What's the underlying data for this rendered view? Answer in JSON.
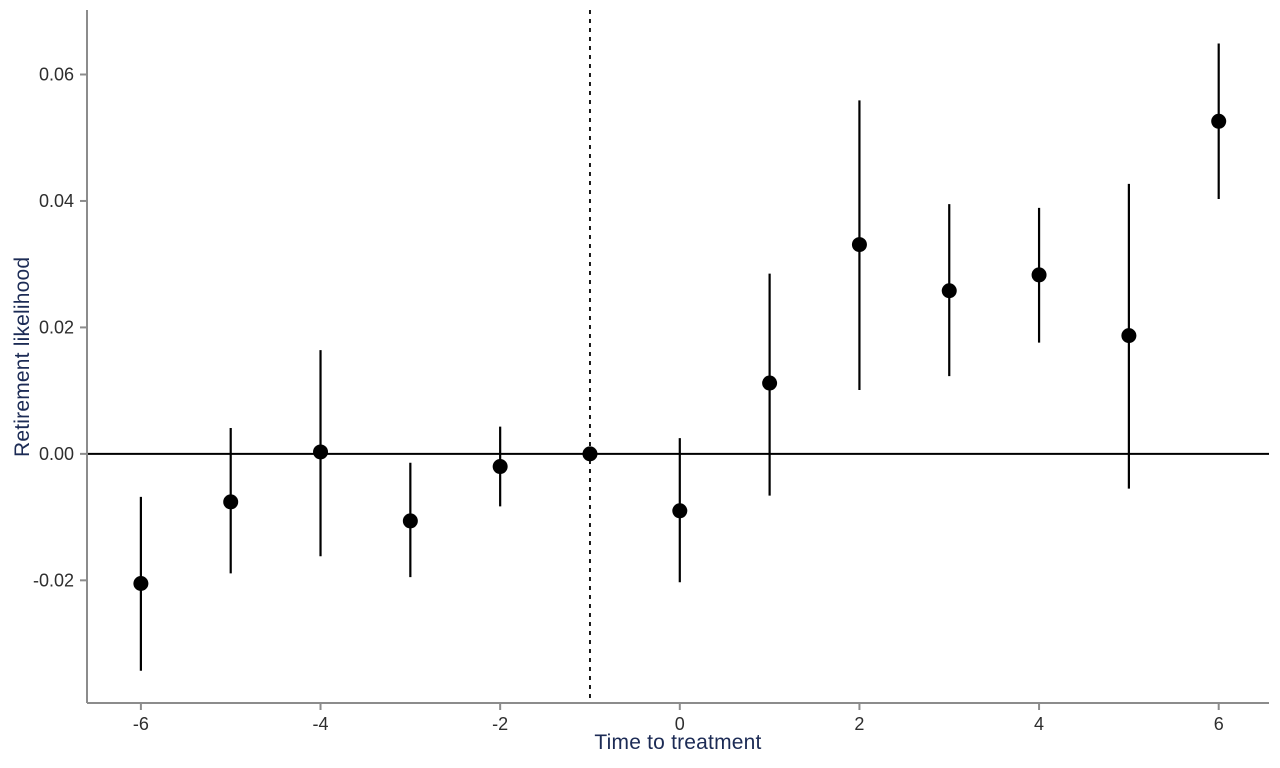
{
  "chart_data": {
    "type": "scatter",
    "subtype": "event-study-point-estimates-with-confidence-intervals",
    "title": "",
    "xlabel": "Time to treatment",
    "ylabel": "Retirement likelihood",
    "x": [
      -6,
      -5,
      -4,
      -3,
      -2,
      -1,
      0,
      1,
      2,
      3,
      4,
      5,
      6
    ],
    "estimates": [
      -0.0205,
      -0.0076,
      0.0003,
      -0.0106,
      -0.002,
      0.0,
      -0.009,
      0.0112,
      0.0331,
      0.0258,
      0.0283,
      0.0187,
      0.0526
    ],
    "ci_low": [
      -0.0343,
      -0.0189,
      -0.0162,
      -0.0195,
      -0.0083,
      0.0,
      -0.0203,
      -0.0066,
      0.0101,
      0.0123,
      0.0176,
      -0.0055,
      0.0403
    ],
    "ci_high": [
      -0.0068,
      0.0041,
      0.0164,
      -0.0014,
      0.0043,
      0.0,
      0.0025,
      0.0285,
      0.0559,
      0.0395,
      0.0389,
      0.0427,
      0.0649
    ],
    "x_ticks": {
      "values": [
        -6,
        -4,
        -2,
        0,
        2,
        4,
        6
      ],
      "labels": [
        "-6",
        "-4",
        "-2",
        "0",
        "2",
        "4",
        "6"
      ]
    },
    "y_ticks": {
      "values": [
        -0.02,
        0,
        0.02,
        0.04,
        0.06
      ],
      "labels": [
        "-0.02",
        "0.00",
        "0.02",
        "0.04",
        "0.06"
      ]
    },
    "xlim": [
      -6.6,
      6.56
    ],
    "ylim": [
      -0.0394,
      0.0702
    ],
    "reference_line_x": -1,
    "reference_line_style": "dashed",
    "zero_line_y": 0,
    "grid": "off",
    "legend": "none",
    "colors": {
      "point": "#000000",
      "error_bar": "#000000",
      "zero_line": "#000000",
      "reference_line": "#000000",
      "axis_line": "#8c8c8c",
      "tick_label": "#2e2e2e",
      "axis_title": "#1c2b55",
      "background": "#ffffff"
    }
  }
}
